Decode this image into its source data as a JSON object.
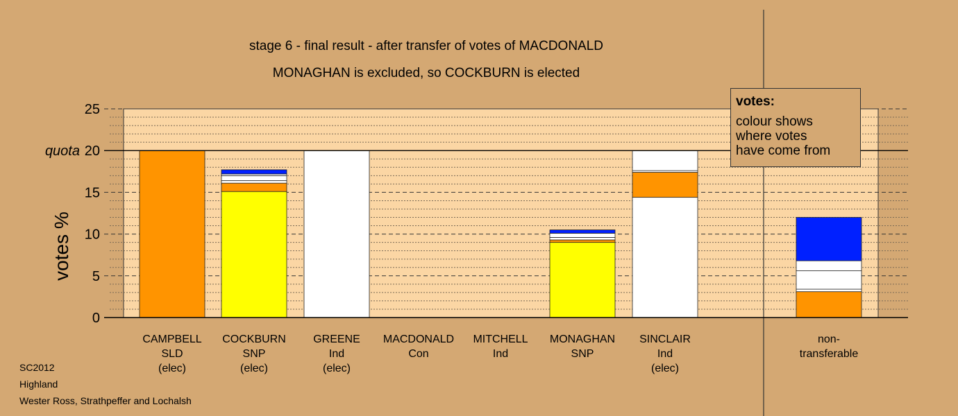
{
  "chart_data": {
    "type": "bar",
    "stacked": true,
    "title": "stage 6 - final result - after transfer of votes of MACDONALD",
    "subtitle": "MONAGHAN is excluded, so COCKBURN is elected",
    "ylabel": "votes %",
    "ylim": [
      0,
      25
    ],
    "yticks": [
      "0",
      "5",
      "10",
      "15",
      "20",
      "25"
    ],
    "quota_label": "quota",
    "quota": 20,
    "grid": true,
    "categories": [
      {
        "lines": [
          "CAMPBELL",
          "SLD",
          "(elec)"
        ]
      },
      {
        "lines": [
          "COCKBURN",
          "SNP",
          "(elec)"
        ]
      },
      {
        "lines": [
          "GREENE",
          "Ind",
          "(elec)"
        ]
      },
      {
        "lines": [
          "MACDONALD",
          "Con"
        ]
      },
      {
        "lines": [
          "MITCHELL",
          "Ind"
        ]
      },
      {
        "lines": [
          "MONAGHAN",
          "SNP"
        ]
      },
      {
        "lines": [
          "SINCLAIR",
          "Ind",
          "(elec)"
        ]
      },
      {
        "lines": [
          "non-",
          "transferable"
        ]
      }
    ],
    "stacks": [
      [
        {
          "color": "#ff9400",
          "value": 20
        }
      ],
      [
        {
          "color": "#ffff00",
          "value": 15.1
        },
        {
          "color": "#ff9400",
          "value": 1.0
        },
        {
          "color": "#ffffff",
          "value": 0.3
        },
        {
          "color": "#ffffff",
          "value": 0.6
        },
        {
          "color": "#ffffff",
          "value": 0.2
        },
        {
          "color": "#0020ff",
          "value": 0.5
        }
      ],
      [
        {
          "color": "#ffffff",
          "value": 20
        }
      ],
      [],
      [],
      [
        {
          "color": "#ffff00",
          "value": 9.0
        },
        {
          "color": "#ff9400",
          "value": 0.3
        },
        {
          "color": "#ffffff",
          "value": 0.3
        },
        {
          "color": "#ffffff",
          "value": 0.5
        },
        {
          "color": "#0020ff",
          "value": 0.4
        }
      ],
      [
        {
          "color": "#ffffff",
          "value": 14.4
        },
        {
          "color": "#ff9400",
          "value": 3.0
        },
        {
          "color": "#ffffff",
          "value": 0.2
        },
        {
          "color": "#ffffff",
          "value": 2.4
        }
      ],
      [
        {
          "color": "#ff9400",
          "value": 3.1
        },
        {
          "color": "#ffffff",
          "value": 0.3
        },
        {
          "color": "#ffffff",
          "value": 2.2
        },
        {
          "color": "#ffffff",
          "value": 1.2
        },
        {
          "color": "#0020ff",
          "value": 5.2
        }
      ]
    ],
    "colors": {
      "background": "#d4a873",
      "plot_area": "#fbd6a4",
      "orange": "#ff9400",
      "yellow": "#ffff00",
      "white": "#ffffff",
      "blue": "#0020ff"
    }
  },
  "legend": {
    "title": "votes:",
    "lines": [
      "colour shows",
      "where votes",
      "have come from"
    ]
  },
  "footer": {
    "line1": "SC2012",
    "line2": "Highland",
    "line3": "Wester Ross, Strathpeffer and Lochalsh"
  }
}
